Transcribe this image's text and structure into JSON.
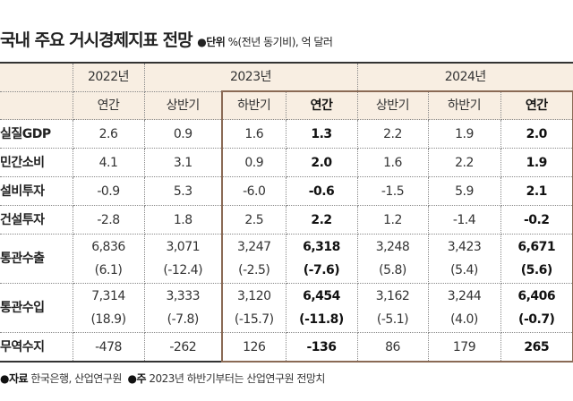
{
  "title": "국내 주요 거시경제지표 전망",
  "unit_label": "●단위",
  "unit_text": "%(전년 동기비), 억 달러",
  "years": [
    "2022년",
    "2023년",
    "2024년"
  ],
  "periods": [
    "연간",
    "상반기",
    "하반기",
    "연간",
    "상반기",
    "하반기",
    "연간"
  ],
  "rows": [
    {
      "label": "실질GDP",
      "values": [
        "2.6",
        "0.9",
        "1.6",
        "1.3",
        "2.2",
        "1.9",
        "2.0"
      ]
    },
    {
      "label": "민간소비",
      "values": [
        "4.1",
        "3.1",
        "0.9",
        "2.0",
        "1.6",
        "2.2",
        "1.9"
      ]
    },
    {
      "label": "설비투자",
      "values": [
        "-0.9",
        "5.3",
        "-6.0",
        "-0.6",
        "-1.5",
        "5.9",
        "2.1"
      ]
    },
    {
      "label": "건설투자",
      "values": [
        "-2.8",
        "1.8",
        "2.5",
        "2.2",
        "1.2",
        "-1.4",
        "-0.2"
      ]
    },
    {
      "label": "통관수출",
      "values": [
        "6,836",
        "3,071",
        "3,247",
        "6,318",
        "3,248",
        "3,423",
        "6,671"
      ],
      "sub": [
        "(6.1)",
        "(-12.4)",
        "(-2.5)",
        "(-7.6)",
        "(5.8)",
        "(5.4)",
        "(5.6)"
      ]
    },
    {
      "label": "통관수입",
      "values": [
        "7,314",
        "3,333",
        "3,120",
        "6,454",
        "3,162",
        "3,244",
        "6,406"
      ],
      "sub": [
        "(18.9)",
        "(-7.8)",
        "(-15.7)",
        "(-11.8)",
        "(-5.1)",
        "(4.0)",
        "(-0.7)"
      ]
    },
    {
      "label": "무역수지",
      "values": [
        "-478",
        "-262",
        "126",
        "-136",
        "86",
        "179",
        "265"
      ]
    }
  ],
  "footer": {
    "source_label": "●자료",
    "source": "한국은행, 산업연구원",
    "note_label": "●주",
    "note": "2023년 하반기부터는 산업연구원 전망치"
  }
}
